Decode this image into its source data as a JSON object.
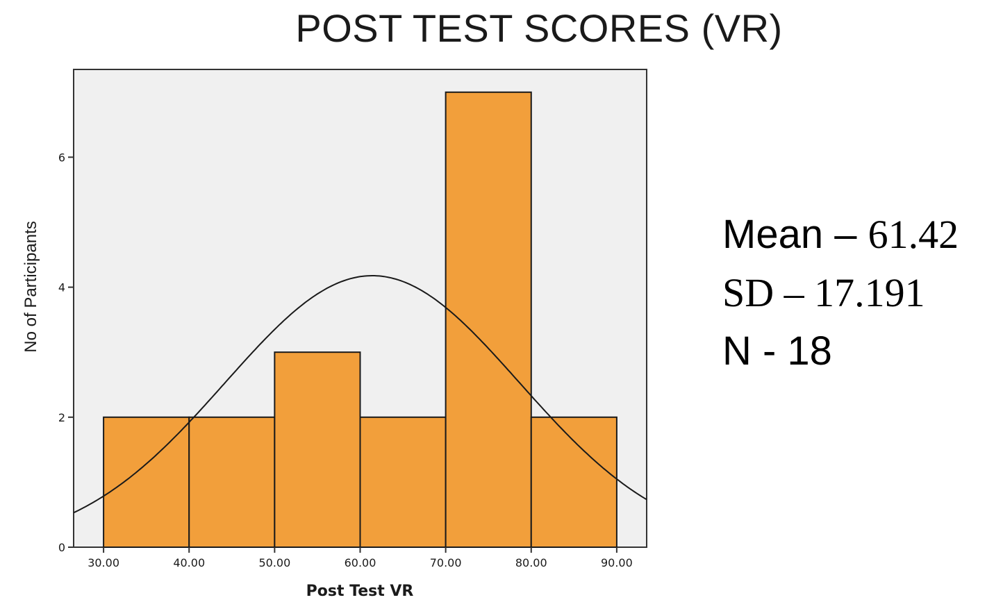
{
  "slide": {
    "title": "POST TEST SCORES (VR)"
  },
  "stats": {
    "mean_label": "Mean – ",
    "mean_value": "61.42",
    "sd_label": "SD – 17.191",
    "n_label": "N - 18"
  },
  "chart_data": {
    "type": "bar",
    "subtype": "histogram-with-normal-curve",
    "xlabel": "Post Test VR",
    "ylabel": "No of Participants",
    "bins": [
      {
        "from": 30,
        "to": 40,
        "count": 2
      },
      {
        "from": 40,
        "to": 50,
        "count": 2
      },
      {
        "from": 50,
        "to": 60,
        "count": 3
      },
      {
        "from": 60,
        "to": 70,
        "count": 2
      },
      {
        "from": 70,
        "to": 80,
        "count": 7
      },
      {
        "from": 80,
        "to": 90,
        "count": 2
      }
    ],
    "x_ticks": [
      "30.00",
      "40.00",
      "50.00",
      "60.00",
      "70.00",
      "80.00",
      "90.00"
    ],
    "x_tick_values": [
      30,
      40,
      50,
      60,
      70,
      80,
      90
    ],
    "y_ticks": [
      "0",
      "2",
      "4",
      "6"
    ],
    "y_tick_values": [
      0,
      2,
      4,
      6
    ],
    "xlim": [
      26.5,
      93.5
    ],
    "ylim": [
      0,
      7.35
    ],
    "normal_curve": {
      "mean": 61.42,
      "sd": 17.191,
      "n": 18,
      "bin_width": 10
    },
    "colors": {
      "bar_fill": "#f29f3b",
      "bar_stroke": "#1a1a1a",
      "plot_bg": "#f0f0f0",
      "curve": "#1a1a1a"
    },
    "grid": false,
    "legend": "none"
  }
}
